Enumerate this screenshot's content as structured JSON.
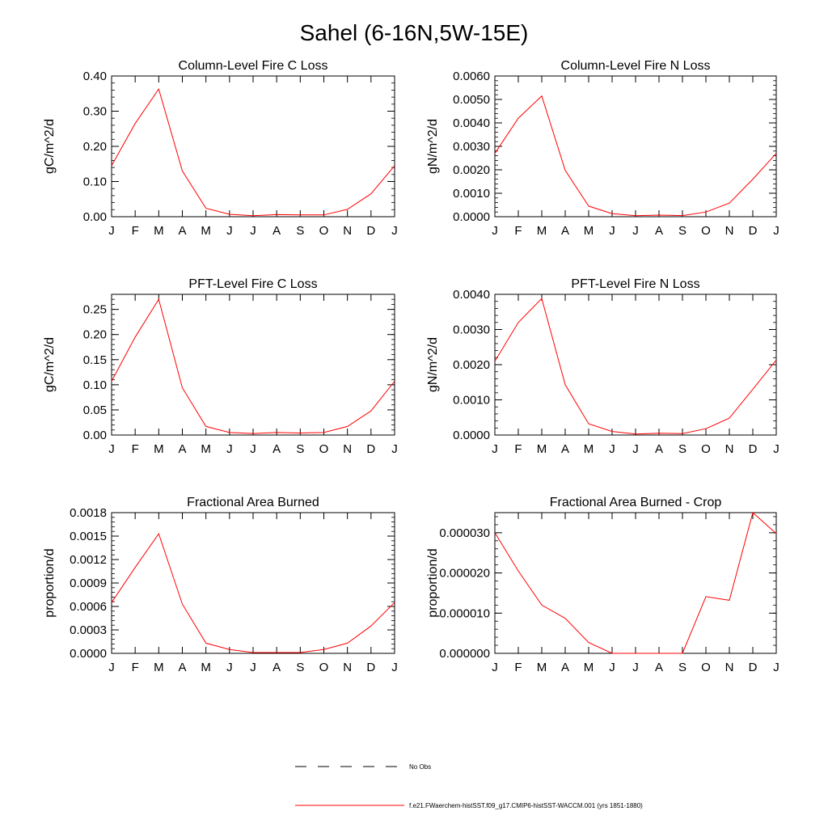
{
  "figure_title": "Sahel (6-16N,5W-15E)",
  "legend": {
    "obs_label": "No Obs",
    "model_label": "f.e21.FWaerchem-histSST.f09_g17.CMIP6-histSST-WACCM.001 (yrs 1851-1880)",
    "obs_color": "#000000",
    "model_color": "#ff0000"
  },
  "chart_data": [
    {
      "type": "line",
      "title": "Column-Level Fire C Loss",
      "ylabel": "gC/m^2/d",
      "categories": [
        "J",
        "F",
        "M",
        "A",
        "M",
        "J",
        "J",
        "A",
        "S",
        "O",
        "N",
        "D",
        "J"
      ],
      "ylim": [
        0,
        0.4
      ],
      "yticks": [
        0,
        0.1,
        0.2,
        0.3,
        0.4
      ],
      "ytick_labels": [
        "0.00",
        "0.10",
        "0.20",
        "0.30",
        "0.40"
      ],
      "series": [
        {
          "values": [
            0.145,
            0.265,
            0.363,
            0.13,
            0.024,
            0.007,
            0.003,
            0.006,
            0.005,
            0.005,
            0.021,
            0.065,
            0.145
          ]
        }
      ]
    },
    {
      "type": "line",
      "title": "Column-Level Fire N Loss",
      "ylabel": "gN/m^2/d",
      "categories": [
        "J",
        "F",
        "M",
        "A",
        "M",
        "J",
        "J",
        "A",
        "S",
        "O",
        "N",
        "D",
        "J"
      ],
      "ylim": [
        0,
        0.006
      ],
      "yticks": [
        0,
        0.001,
        0.002,
        0.003,
        0.004,
        0.005,
        0.006
      ],
      "ytick_labels": [
        "0.0000",
        "0.0010",
        "0.0020",
        "0.0030",
        "0.0040",
        "0.0050",
        "0.0060"
      ],
      "series": [
        {
          "values": [
            0.0027,
            0.0042,
            0.00515,
            0.00198,
            0.00045,
            0.00013,
            4e-05,
            7e-05,
            5e-05,
            0.0002,
            0.00058,
            0.0016,
            0.0027
          ]
        }
      ]
    },
    {
      "type": "line",
      "title": "PFT-Level Fire C Loss",
      "ylabel": "gC/m^2/d",
      "categories": [
        "J",
        "F",
        "M",
        "A",
        "M",
        "J",
        "J",
        "A",
        "S",
        "O",
        "N",
        "D",
        "J"
      ],
      "ylim": [
        0,
        0.28
      ],
      "yticks": [
        0,
        0.05,
        0.1,
        0.15,
        0.2,
        0.25
      ],
      "ytick_labels": [
        "0.00",
        "0.05",
        "0.10",
        "0.15",
        "0.20",
        "0.25"
      ],
      "series": [
        {
          "values": [
            0.107,
            0.195,
            0.27,
            0.094,
            0.017,
            0.005,
            0.003,
            0.005,
            0.004,
            0.005,
            0.017,
            0.048,
            0.107
          ]
        }
      ]
    },
    {
      "type": "line",
      "title": "PFT-Level Fire N Loss",
      "ylabel": "gN/m^2/d",
      "categories": [
        "J",
        "F",
        "M",
        "A",
        "M",
        "J",
        "J",
        "A",
        "S",
        "O",
        "N",
        "D",
        "J"
      ],
      "ylim": [
        0,
        0.004
      ],
      "yticks": [
        0,
        0.001,
        0.002,
        0.003,
        0.004
      ],
      "ytick_labels": [
        "0.0000",
        "0.0010",
        "0.0020",
        "0.0030",
        "0.0040"
      ],
      "series": [
        {
          "values": [
            0.0021,
            0.0032,
            0.00388,
            0.00143,
            0.00032,
            0.0001,
            3e-05,
            5e-05,
            4e-05,
            0.00018,
            0.00048,
            0.0013,
            0.00213
          ]
        }
      ]
    },
    {
      "type": "line",
      "title": "Fractional Area Burned",
      "ylabel": "proportion/d",
      "categories": [
        "J",
        "F",
        "M",
        "A",
        "M",
        "J",
        "J",
        "A",
        "S",
        "O",
        "N",
        "D",
        "J"
      ],
      "ylim": [
        0,
        0.0018
      ],
      "yticks": [
        0,
        0.0003,
        0.0006,
        0.0009,
        0.0012,
        0.0015,
        0.0018
      ],
      "ytick_labels": [
        "0.0000",
        "0.0003",
        "0.0006",
        "0.0009",
        "0.0012",
        "0.0015",
        "0.0018"
      ],
      "series": [
        {
          "values": [
            0.00065,
            0.0011,
            0.00153,
            0.00063,
            0.00013,
            5e-05,
            1e-05,
            1e-05,
            1e-05,
            5e-05,
            0.00013,
            0.00035,
            0.00065
          ]
        }
      ]
    },
    {
      "type": "line",
      "title": "Fractional Area Burned - Crop",
      "ylabel": "proportion/d",
      "categories": [
        "J",
        "F",
        "M",
        "A",
        "M",
        "J",
        "J",
        "A",
        "S",
        "O",
        "N",
        "D",
        "J"
      ],
      "ylim": [
        0,
        3.5e-05
      ],
      "yticks": [
        0,
        1e-05,
        2e-05,
        3e-05
      ],
      "ytick_labels": [
        "0.000000",
        "0.000010",
        "0.000020",
        "0.000030"
      ],
      "series": [
        {
          "values": [
            3e-05,
            2.05e-05,
            1.2e-05,
            8.7e-06,
            2.7e-06,
            0,
            0,
            0,
            0,
            1.41e-05,
            1.32e-05,
            3.5e-05,
            2.98e-05
          ]
        }
      ]
    }
  ]
}
